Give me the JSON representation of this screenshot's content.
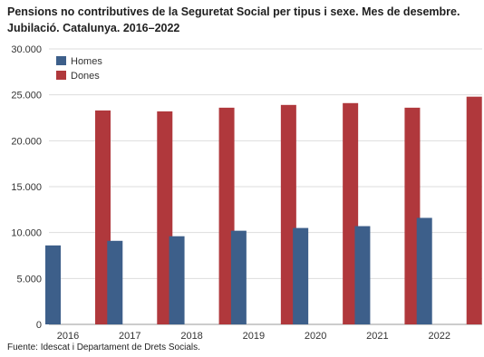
{
  "chart_data": {
    "type": "bar",
    "title": "Pensions no contributives de la Seguretat Social per tipus i sexe. Mes de desembre. Jubilació. Catalunya. 2016–2022",
    "categories": [
      "2016",
      "2017",
      "2018",
      "2019",
      "2020",
      "2021",
      "2022"
    ],
    "series": [
      {
        "name": "Homes",
        "color": "#3d5f8a",
        "values": [
          8600,
          9100,
          9600,
          10200,
          10500,
          10700,
          11600
        ]
      },
      {
        "name": "Dones",
        "color": "#b0383c",
        "values": [
          23300,
          23200,
          23600,
          23900,
          24100,
          23600,
          24800
        ]
      }
    ],
    "ylim": [
      0,
      30000
    ],
    "yticks": [
      "0",
      "5.000",
      "10.000",
      "15.000",
      "20.000",
      "25.000",
      "30.000"
    ],
    "ytick_values": [
      0,
      5000,
      10000,
      15000,
      20000,
      25000,
      30000
    ],
    "grid": true,
    "legend_position": "top-left",
    "xlabel": "",
    "ylabel": ""
  },
  "source": "Fuente: Idescat i Departament de Drets Socials."
}
